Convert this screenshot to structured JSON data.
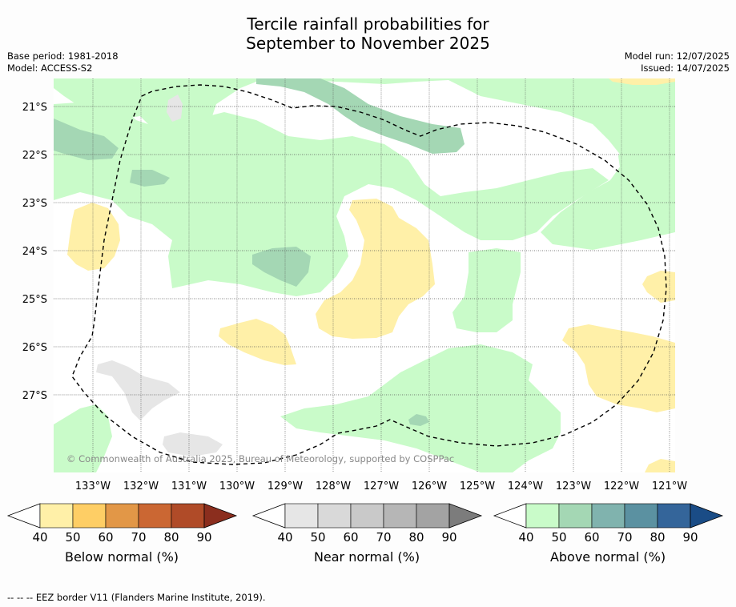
{
  "title_line1": "Tercile rainfall probabilities for",
  "title_line2": "September to November 2025",
  "meta_left": {
    "base_period": "Base period: 1981-2018",
    "model": "Model: ACCESS-S2"
  },
  "meta_right": {
    "model_run": "Model run: 12/07/2025",
    "issued": "Issued: 14/07/2025"
  },
  "copyright": "© Commonwealth of Australia 2025, Bureau of Meteorology, supported by COSPPac",
  "lat_ticks": [
    "21°S",
    "22°S",
    "23°S",
    "24°S",
    "25°S",
    "26°S",
    "27°S"
  ],
  "lon_ticks": [
    "133°W",
    "132°W",
    "131°W",
    "130°W",
    "129°W",
    "128°W",
    "127°W",
    "126°W",
    "125°W",
    "124°W",
    "123°W",
    "122°W",
    "121°W"
  ],
  "colorbars": [
    {
      "label": "Below normal (%)",
      "ticks": [
        "40",
        "50",
        "60",
        "70",
        "80",
        "90"
      ],
      "colors": [
        "#fff0a8",
        "#fece65",
        "#e29747",
        "#cb6733",
        "#b04b28",
        "#8b2e1e"
      ]
    },
    {
      "label": "Near normal (%)",
      "ticks": [
        "40",
        "50",
        "60",
        "70",
        "80",
        "90"
      ],
      "colors": [
        "#e6e6e6",
        "#d9d9d9",
        "#c9c9c9",
        "#b6b6b6",
        "#a3a3a3",
        "#7c7c7c"
      ]
    },
    {
      "label": "Above normal (%)",
      "ticks": [
        "40",
        "50",
        "60",
        "70",
        "80",
        "90"
      ],
      "colors": [
        "#c9fbc9",
        "#a4d7b4",
        "#80b3ae",
        "#5b91a1",
        "#34659a",
        "#1a4c86"
      ]
    }
  ],
  "footnote": "--  --  -- EEZ border V11 (Flanders Marine Institute, 2019)."
}
